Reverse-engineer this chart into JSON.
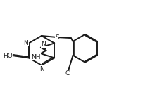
{
  "bg_color": "#ffffff",
  "line_color": "#1a1a1a",
  "line_width": 1.4,
  "font_size": 6.5,
  "figsize": [
    2.13,
    1.48
  ],
  "dpi": 100,
  "xlim": [
    -0.05,
    1.3
  ],
  "ylim": [
    -0.05,
    1.0
  ]
}
